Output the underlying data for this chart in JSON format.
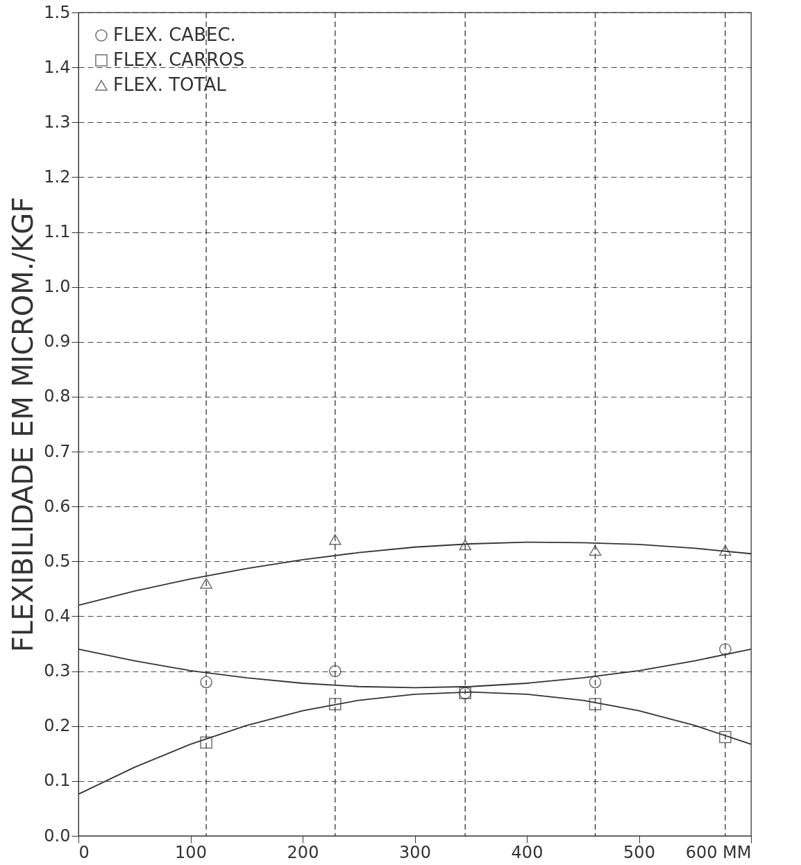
{
  "chart_data": {
    "type": "scatter",
    "xlabel": null,
    "ylabel": "FLEXIBILIDADE EM MICROM./KGF",
    "xlim": [
      0,
      600
    ],
    "xticks": [
      0,
      100,
      200,
      300,
      400,
      500,
      {
        "value": 600,
        "label": "600 MM"
      }
    ],
    "ylim": [
      0,
      1.5
    ],
    "yticks": [
      {
        "value": 0,
        "label": "0.0"
      },
      0.1,
      0.2,
      0.3,
      0.4,
      0.5,
      0.6,
      0.7,
      0.8,
      0.9,
      {
        "value": 1.0,
        "label": "1.0"
      },
      1.1,
      1.2,
      1.3,
      1.4,
      1.5
    ],
    "grid": "y",
    "legend": "top left",
    "ref_lines": [
      {
        "axis": "x",
        "value": 114,
        "line_style": "dashed",
        "color": "#333333"
      },
      {
        "axis": "x",
        "value": 229,
        "line_style": "dashed",
        "color": "#333333"
      },
      {
        "axis": "x",
        "value": 345,
        "line_style": "dashed",
        "color": "#333333"
      },
      {
        "axis": "x",
        "value": 461,
        "line_style": "dashed",
        "color": "#333333"
      },
      {
        "axis": "x",
        "value": 577,
        "line_style": "dashed",
        "color": "#333333"
      }
    ],
    "series": [
      {
        "name": "FLEX. CABEC.",
        "marker": "circle",
        "color": "#333333",
        "x": [
          114,
          229,
          345,
          461,
          577
        ],
        "values": [
          0.28,
          0.3,
          0.26,
          0.28,
          0.34
        ]
      },
      {
        "name": "FLEX. CARROS",
        "marker": "square",
        "color": "#333333",
        "x": [
          114,
          229,
          345,
          461,
          577
        ],
        "values": [
          0.17,
          0.24,
          0.26,
          0.24,
          0.18
        ]
      },
      {
        "name": "FLEX. TOTAL",
        "marker": "triangle",
        "color": "#333333",
        "x": [
          114,
          229,
          345,
          461,
          577
        ],
        "values": [
          0.46,
          0.54,
          0.53,
          0.52,
          0.52
        ]
      },
      {
        "type": "line",
        "color": "#333333",
        "x": [
          0,
          50,
          100,
          150,
          200,
          250,
          300,
          350,
          400,
          450,
          500,
          550,
          600
        ],
        "values": [
          0.34,
          0.319,
          0.301,
          0.288,
          0.278,
          0.272,
          0.27,
          0.272,
          0.278,
          0.288,
          0.301,
          0.319,
          0.34
        ]
      },
      {
        "type": "line",
        "color": "#333333",
        "x": [
          0,
          50,
          100,
          150,
          200,
          250,
          300,
          350,
          400,
          450,
          500,
          550,
          600
        ],
        "values": [
          0.076,
          0.125,
          0.167,
          0.201,
          0.228,
          0.247,
          0.258,
          0.262,
          0.258,
          0.247,
          0.228,
          0.201,
          0.167
        ]
      },
      {
        "type": "line",
        "color": "#333333",
        "x": [
          0,
          50,
          100,
          150,
          200,
          250,
          300,
          350,
          400,
          450,
          500,
          550,
          600
        ],
        "values": [
          0.42,
          0.446,
          0.468,
          0.487,
          0.503,
          0.516,
          0.526,
          0.532,
          0.535,
          0.534,
          0.531,
          0.524,
          0.514
        ]
      }
    ]
  }
}
